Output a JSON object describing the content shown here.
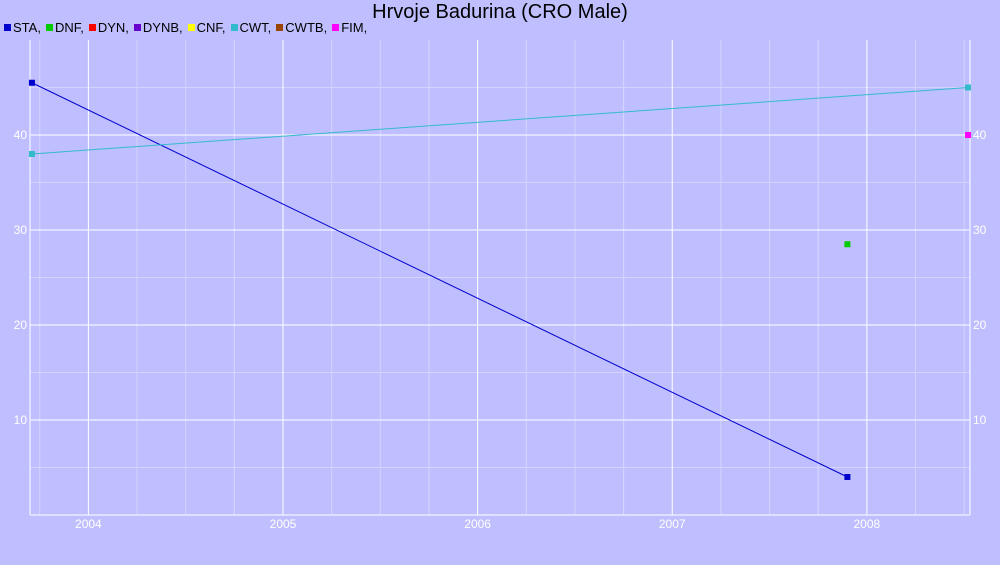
{
  "chart_data": {
    "type": "line",
    "title": "Hrvoje Badurina (CRO Male)",
    "xlim": [
      2003.7,
      2008.53
    ],
    "ylim": [
      0,
      50
    ],
    "x_ticks": [
      2004,
      2005,
      2006,
      2007,
      2008
    ],
    "y_ticks": [
      10,
      20,
      30,
      40
    ],
    "grid": true,
    "legend_position": "top-left",
    "series": [
      {
        "name": "STA",
        "color": "#0000cc",
        "points": [
          [
            2003.71,
            45.5
          ],
          [
            2007.9,
            4
          ]
        ]
      },
      {
        "name": "DNF",
        "color": "#00cc00",
        "points": [
          [
            2007.9,
            28.5
          ]
        ]
      },
      {
        "name": "DYN",
        "color": "#ff0000",
        "points": []
      },
      {
        "name": "DYNB",
        "color": "#6600cc",
        "points": []
      },
      {
        "name": "CNF",
        "color": "#ffff00",
        "points": []
      },
      {
        "name": "CWT",
        "color": "#33bbcc",
        "points": [
          [
            2003.71,
            38
          ],
          [
            2008.52,
            45
          ]
        ]
      },
      {
        "name": "CWTB",
        "color": "#994400",
        "points": []
      },
      {
        "name": "FIM",
        "color": "#ff00ff",
        "points": [
          [
            2008.52,
            40
          ]
        ]
      }
    ]
  }
}
